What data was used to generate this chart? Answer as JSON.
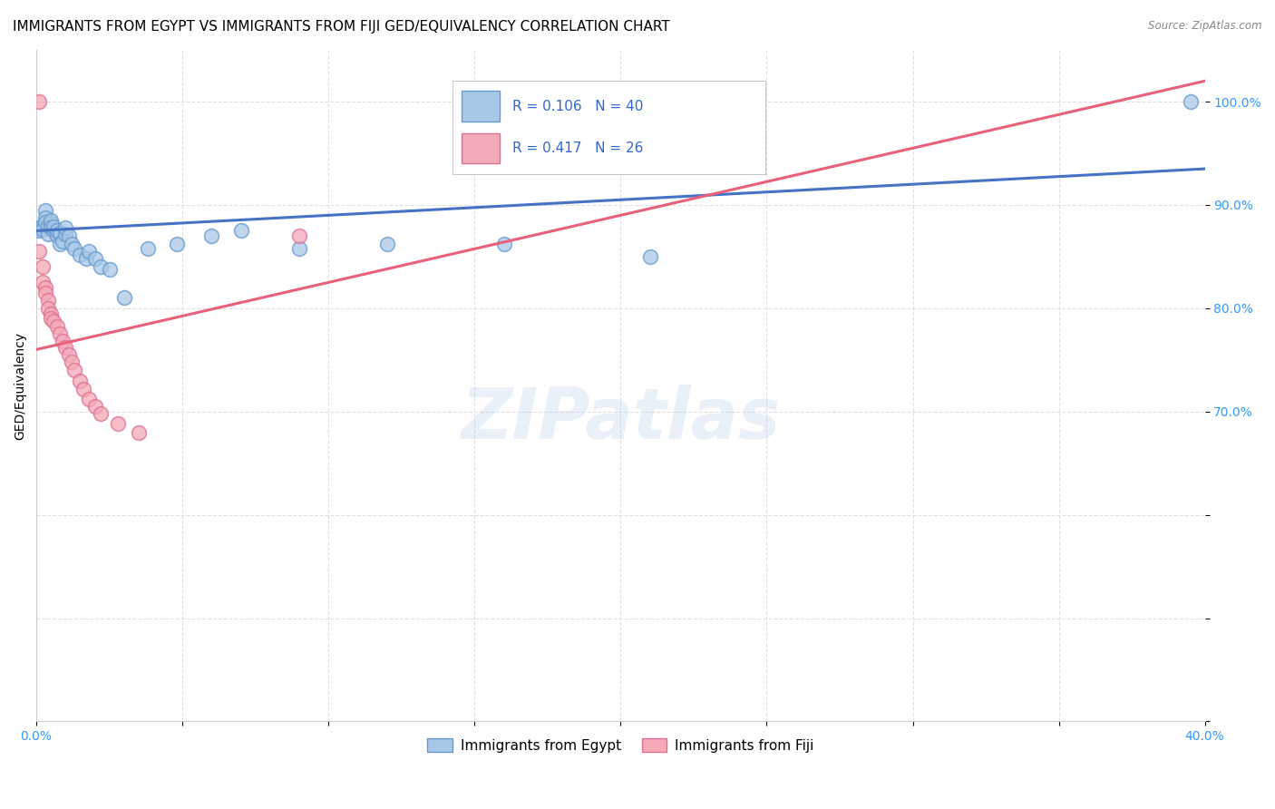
{
  "title": "IMMIGRANTS FROM EGYPT VS IMMIGRANTS FROM FIJI GED/EQUIVALENCY CORRELATION CHART",
  "source": "Source: ZipAtlas.com",
  "ylabel": "GED/Equivalency",
  "xlim": [
    0.0,
    0.4
  ],
  "ylim": [
    0.4,
    1.05
  ],
  "xtick_positions": [
    0.0,
    0.05,
    0.1,
    0.15,
    0.2,
    0.25,
    0.3,
    0.35,
    0.4
  ],
  "xtick_labels": [
    "0.0%",
    "",
    "",
    "",
    "",
    "",
    "",
    "",
    "40.0%"
  ],
  "ytick_positions": [
    0.4,
    0.5,
    0.6,
    0.7,
    0.8,
    0.9,
    1.0
  ],
  "ytick_labels": [
    "",
    "",
    "",
    "70.0%",
    "80.0%",
    "90.0%",
    "100.0%"
  ],
  "egypt_color": "#A8C8E8",
  "fiji_color": "#F4A8B8",
  "egypt_edge_color": "#6699CC",
  "fiji_edge_color": "#DD7090",
  "trend_egypt_color": "#4472C4",
  "trend_fiji_color": "#E8607A",
  "R_egypt": 0.106,
  "N_egypt": 40,
  "R_fiji": 0.417,
  "N_fiji": 26,
  "legend_label_egypt": "Immigrants from Egypt",
  "legend_label_fiji": "Immigrants from Fiji",
  "legend_text_color": "#3366CC",
  "tick_color": "#3399FF",
  "egypt_x": [
    0.001,
    0.001,
    0.002,
    0.002,
    0.003,
    0.003,
    0.003,
    0.004,
    0.004,
    0.005,
    0.005,
    0.005,
    0.006,
    0.006,
    0.007,
    0.007,
    0.008,
    0.008,
    0.009,
    0.01,
    0.01,
    0.011,
    0.012,
    0.013,
    0.015,
    0.017,
    0.018,
    0.02,
    0.022,
    0.025,
    0.03,
    0.038,
    0.048,
    0.06,
    0.07,
    0.09,
    0.12,
    0.16,
    0.21,
    0.395
  ],
  "egypt_y": [
    0.878,
    0.875,
    0.88,
    0.876,
    0.895,
    0.888,
    0.883,
    0.88,
    0.872,
    0.882,
    0.885,
    0.878,
    0.875,
    0.879,
    0.87,
    0.875,
    0.873,
    0.862,
    0.865,
    0.872,
    0.878,
    0.87,
    0.862,
    0.858,
    0.852,
    0.848,
    0.855,
    0.848,
    0.84,
    0.838,
    0.81,
    0.858,
    0.862,
    0.87,
    0.875,
    0.858,
    0.862,
    0.862,
    0.85,
    1.0
  ],
  "fiji_x": [
    0.001,
    0.001,
    0.002,
    0.002,
    0.003,
    0.003,
    0.004,
    0.004,
    0.005,
    0.005,
    0.006,
    0.007,
    0.008,
    0.009,
    0.01,
    0.011,
    0.012,
    0.013,
    0.015,
    0.016,
    0.018,
    0.02,
    0.022,
    0.028,
    0.035,
    0.09
  ],
  "fiji_y": [
    1.0,
    0.855,
    0.84,
    0.825,
    0.82,
    0.815,
    0.808,
    0.8,
    0.795,
    0.79,
    0.788,
    0.782,
    0.775,
    0.768,
    0.762,
    0.755,
    0.748,
    0.74,
    0.73,
    0.722,
    0.712,
    0.705,
    0.698,
    0.688,
    0.68,
    0.87
  ],
  "trend_egypt_x0": 0.0,
  "trend_egypt_y0": 0.875,
  "trend_egypt_x1": 0.4,
  "trend_egypt_y1": 0.935,
  "trend_fiji_x0": 0.0,
  "trend_fiji_y0": 0.76,
  "trend_fiji_x1": 0.4,
  "trend_fiji_y1": 1.02,
  "watermark": "ZIPatlas",
  "grid_color": "#DDDDDD",
  "title_fontsize": 11,
  "axis_label_fontsize": 10,
  "tick_fontsize": 10,
  "legend_fontsize": 11,
  "scatter_size": 130,
  "scatter_alpha": 0.75
}
